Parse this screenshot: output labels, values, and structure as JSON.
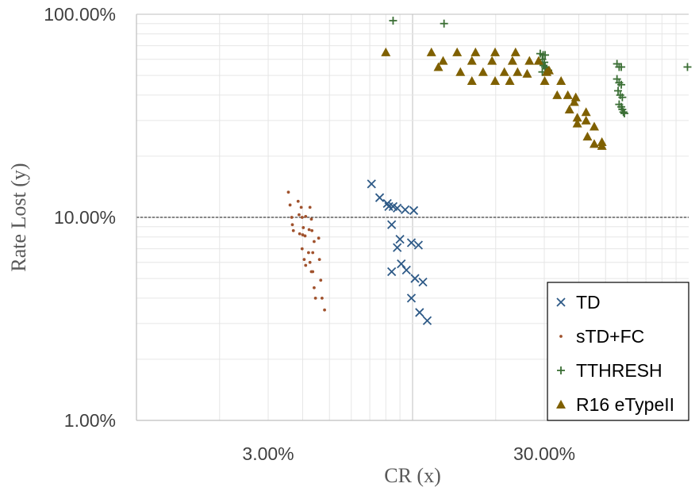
{
  "chart_data": {
    "type": "scatter",
    "xscale": "log",
    "yscale": "log",
    "xlim": [
      1.0,
      100.0
    ],
    "ylim": [
      1.0,
      100.0
    ],
    "xlabel": "CR (x)",
    "ylabel": "Rate Lost (y)",
    "grid": true,
    "legend_position": "bottom-right",
    "x_tick_labels": [
      {
        "value": 3.0,
        "label": "3.00%"
      },
      {
        "value": 30.0,
        "label": "30.00%"
      }
    ],
    "y_tick_labels": [
      {
        "value": 100.0,
        "label": "100.00%"
      },
      {
        "value": 10.0,
        "label": "10.00%"
      },
      {
        "value": 1.0,
        "label": "1.00%"
      }
    ],
    "reference_line": {
      "y": 10.0
    },
    "colors": {
      "TD": "#2e5a87",
      "sTD+FC": "#a0522d",
      "TTHRESH": "#3a6e34",
      "R16 eTypeII": "#7f6000",
      "grid_major": "#bfbfbf",
      "grid_minor": "#e6e6e6",
      "axis": "#bfbfbf",
      "reference_line": "#404040"
    },
    "series": [
      {
        "name": "TD",
        "marker": "x",
        "points": [
          [
            7.1,
            14.6
          ],
          [
            7.6,
            12.5
          ],
          [
            8.1,
            11.7
          ],
          [
            8.2,
            11.3
          ],
          [
            8.5,
            11.3
          ],
          [
            8.8,
            11.1
          ],
          [
            9.4,
            10.9
          ],
          [
            10.1,
            10.8
          ],
          [
            8.4,
            9.2
          ],
          [
            9.0,
            7.8
          ],
          [
            8.8,
            7.1
          ],
          [
            9.9,
            7.5
          ],
          [
            10.5,
            7.3
          ],
          [
            8.4,
            5.4
          ],
          [
            9.1,
            5.9
          ],
          [
            9.5,
            5.5
          ],
          [
            10.2,
            5.0
          ],
          [
            10.9,
            4.8
          ],
          [
            9.9,
            4.0
          ],
          [
            10.6,
            3.4
          ],
          [
            11.3,
            3.1
          ]
        ]
      },
      {
        "name": "sTD+FC",
        "marker": "dot",
        "points": [
          [
            3.55,
            13.3
          ],
          [
            3.6,
            11.5
          ],
          [
            3.65,
            10.0
          ],
          [
            3.67,
            9.2
          ],
          [
            3.7,
            8.6
          ],
          [
            3.85,
            12.0
          ],
          [
            3.95,
            11.2
          ],
          [
            3.88,
            10.3
          ],
          [
            3.98,
            10.0
          ],
          [
            4.1,
            10.1
          ],
          [
            4.25,
            11.2
          ],
          [
            4.3,
            9.8
          ],
          [
            4.02,
            8.9
          ],
          [
            3.9,
            8.3
          ],
          [
            4.0,
            8.2
          ],
          [
            4.08,
            8.1
          ],
          [
            4.22,
            8.7
          ],
          [
            4.32,
            8.6
          ],
          [
            4.4,
            7.6
          ],
          [
            4.57,
            7.9
          ],
          [
            3.98,
            7.0
          ],
          [
            4.2,
            6.7
          ],
          [
            4.35,
            6.7
          ],
          [
            4.05,
            6.2
          ],
          [
            4.25,
            6.0
          ],
          [
            4.1,
            5.8
          ],
          [
            4.6,
            6.2
          ],
          [
            4.3,
            5.4
          ],
          [
            4.35,
            5.4
          ],
          [
            4.65,
            4.9
          ],
          [
            4.4,
            4.5
          ],
          [
            4.45,
            4.0
          ],
          [
            4.7,
            4.0
          ],
          [
            4.8,
            3.5
          ]
        ]
      },
      {
        "name": "TTHRESH",
        "marker": "plus",
        "points": [
          [
            8.5,
            93.0
          ],
          [
            13.0,
            90.0
          ],
          [
            29.0,
            64.0
          ],
          [
            29.7,
            63.0
          ],
          [
            30.2,
            63.0
          ],
          [
            29.5,
            60.0
          ],
          [
            30.0,
            58.0
          ],
          [
            29.8,
            56.0
          ],
          [
            30.2,
            55.0
          ],
          [
            30.6,
            54.0
          ],
          [
            31.0,
            53.0
          ],
          [
            29.5,
            52.0
          ],
          [
            55.0,
            57.0
          ],
          [
            56.0,
            55.0
          ],
          [
            57.0,
            55.0
          ],
          [
            55.0,
            48.0
          ],
          [
            56.0,
            46.0
          ],
          [
            57.0,
            45.0
          ],
          [
            55.5,
            42.0
          ],
          [
            56.5,
            40.0
          ],
          [
            57.5,
            39.0
          ],
          [
            56.0,
            36.0
          ],
          [
            57.0,
            35.0
          ],
          [
            57.5,
            34.0
          ],
          [
            58.0,
            33.0
          ],
          [
            58.5,
            32.5
          ],
          [
            99.0,
            55.0
          ]
        ]
      },
      {
        "name": "R16 eTypeII",
        "marker": "triangle",
        "points": [
          [
            8.0,
            65.0
          ],
          [
            11.7,
            65.0
          ],
          [
            12.9,
            59.0
          ],
          [
            12.4,
            55.0
          ],
          [
            14.5,
            65.0
          ],
          [
            14.9,
            52.0
          ],
          [
            16.4,
            59.0
          ],
          [
            16.9,
            65.0
          ],
          [
            16.4,
            47.0
          ],
          [
            18.0,
            52.0
          ],
          [
            19.4,
            59.0
          ],
          [
            19.9,
            65.0
          ],
          [
            19.9,
            47.0
          ],
          [
            21.5,
            52.0
          ],
          [
            23.0,
            59.0
          ],
          [
            23.6,
            65.0
          ],
          [
            22.5,
            47.0
          ],
          [
            24.0,
            52.0
          ],
          [
            26.5,
            59.0
          ],
          [
            26.0,
            51.0
          ],
          [
            28.6,
            59.0
          ],
          [
            30.1,
            47.0
          ],
          [
            30.6,
            52.0
          ],
          [
            31.2,
            53.0
          ],
          [
            33.4,
            40.0
          ],
          [
            34.5,
            47.0
          ],
          [
            36.5,
            40.0
          ],
          [
            37.0,
            34.0
          ],
          [
            38.5,
            37.0
          ],
          [
            39.0,
            39.0
          ],
          [
            39.5,
            29.0
          ],
          [
            39.5,
            31.0
          ],
          [
            42.5,
            33.0
          ],
          [
            42.5,
            30.0
          ],
          [
            43.0,
            25.0
          ],
          [
            45.5,
            28.0
          ],
          [
            45.5,
            23.0
          ],
          [
            48.5,
            23.5
          ],
          [
            48.5,
            22.5
          ]
        ]
      }
    ]
  }
}
